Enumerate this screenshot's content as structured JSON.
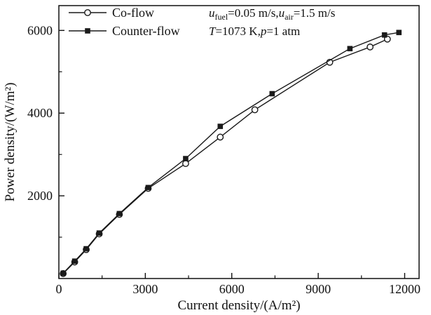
{
  "figure": {
    "background": "#ffffff",
    "ink_color": "#111111"
  },
  "chart_data": {
    "type": "line",
    "title": "",
    "xlabel": "Current density/(A/m²)",
    "ylabel": "Power density/(W/m²)",
    "xlim": [
      0,
      12500
    ],
    "ylim": [
      0,
      6600
    ],
    "grid": false,
    "legend_position": "top-left",
    "x_major_ticks": [
      0,
      3000,
      6000,
      9000,
      12000
    ],
    "x_tick_labels": [
      "0",
      "3000",
      "6000",
      "9000",
      "12000"
    ],
    "x_minor_ticks": [
      1500,
      4500,
      7500,
      10500
    ],
    "y_major_ticks": [
      2000,
      4000,
      6000
    ],
    "y_tick_labels": [
      "2000",
      "4000",
      "6000"
    ],
    "y_minor_ticks": [
      1000,
      3000,
      5000
    ],
    "series": [
      {
        "name": "Co-flow",
        "marker": "circle-open",
        "color": "#1a1a1a",
        "x": [
          150,
          550,
          950,
          1400,
          2100,
          3100,
          4400,
          5600,
          6800,
          9400,
          10800,
          11400
        ],
        "y": [
          120,
          400,
          700,
          1080,
          1550,
          2180,
          2780,
          3420,
          4080,
          5230,
          5600,
          5790
        ]
      },
      {
        "name": "Counter-flow",
        "marker": "square-filled",
        "color": "#1a1a1a",
        "x": [
          150,
          550,
          950,
          1400,
          2100,
          3100,
          4400,
          5600,
          7400,
          10100,
          11300,
          11800
        ],
        "y": [
          130,
          420,
          720,
          1100,
          1570,
          2200,
          2900,
          3680,
          4470,
          5560,
          5890,
          5950
        ]
      }
    ],
    "annotation_lines": [
      [
        {
          "t": "u",
          "italic": true
        },
        {
          "t": "fuel",
          "sub": true
        },
        {
          "t": "=0.05 m/s,"
        },
        {
          "t": "u",
          "italic": true
        },
        {
          "t": "air",
          "sub": true
        },
        {
          "t": "=1.5 m/s"
        }
      ],
      [
        {
          "t": "T",
          "italic": true
        },
        {
          "t": "=1073 K,"
        },
        {
          "t": "p",
          "italic": true
        },
        {
          "t": "=1 atm"
        }
      ]
    ]
  }
}
